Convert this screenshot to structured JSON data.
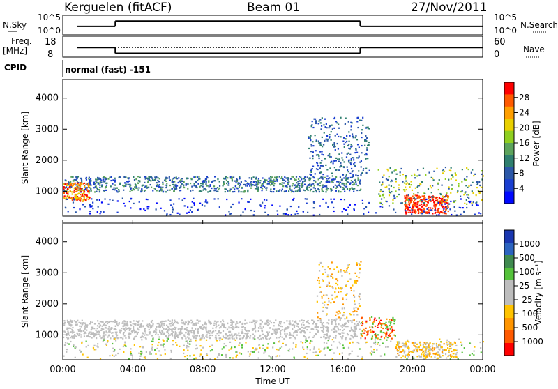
{
  "header": {
    "station": "Kerguelen (fitACF)",
    "beam": "Beam 01",
    "date": "27/Nov/2011"
  },
  "panel_labels": {
    "nsky": "N.Sky",
    "nsearch": "N.Search",
    "freq_line1": "Freq.",
    "freq_line2": "[MHz]",
    "nave": "Nave",
    "cpid": "CPID",
    "cpid_text": "normal (fast) -151"
  },
  "colors": {
    "axis": "#000000",
    "scatter_blue": "#1a3fd0",
    "ground_gray": "#bdbdbd"
  },
  "chart_data": [
    {
      "type": "line",
      "name": "noise",
      "yticks_left": [
        "10^5",
        "10^0"
      ],
      "yticks_right": [
        "10^5",
        "10^0"
      ],
      "segments": [
        {
          "x_start": 0.8,
          "x_end": 3.0,
          "level": 0.55
        },
        {
          "x_start": 3.0,
          "x_end": 17.0,
          "level": 0.9
        },
        {
          "x_start": 17.0,
          "x_end": 24.0,
          "level": 0.55
        }
      ]
    },
    {
      "type": "line",
      "name": "frequency",
      "yticks_left": [
        "18",
        "8"
      ],
      "yticks_right": [
        "60",
        "0"
      ],
      "freq_segments": [
        {
          "x_start": 0.8,
          "x_end": 3.0,
          "value": 12.5
        },
        {
          "x_start": 3.0,
          "x_end": 17.0,
          "value": 9.2
        },
        {
          "x_start": 17.0,
          "x_end": 24.0,
          "value": 12.5
        }
      ],
      "nave_level": 12.5
    },
    {
      "type": "heatmap",
      "name": "power",
      "ylabel": "Slant Range [km]",
      "yticks": [
        1000,
        2000,
        3000,
        4000
      ],
      "ylim": [
        200,
        4600
      ],
      "xlim": [
        0,
        24
      ],
      "colorbar": {
        "label": "Power [dB]",
        "ticks": [
          "28",
          "24",
          "20",
          "16",
          "12",
          "8",
          "4"
        ],
        "colors": [
          "#ff0000",
          "#ff5a00",
          "#ff9f00",
          "#e9d000",
          "#8fcf20",
          "#5ca35c",
          "#2f7f6f",
          "#2c58a8",
          "#1a3fd0",
          "#0008ff"
        ]
      }
    },
    {
      "type": "heatmap",
      "name": "velocity",
      "ylabel": "Slant Range [km]",
      "xlabel": "Time UT",
      "yticks": [
        1000,
        2000,
        3000,
        4000
      ],
      "ylim": [
        200,
        4600
      ],
      "xlim": [
        0,
        24
      ],
      "xticks": [
        "00:00",
        "04:00",
        "08:00",
        "12:00",
        "16:00",
        "20:00",
        "00:00"
      ],
      "colorbar": {
        "label": "Velocity [m s⁻¹]",
        "ticks": [
          "1000",
          "500",
          "100",
          "25",
          "-25",
          "-100",
          "-500",
          "-1000"
        ],
        "colors": [
          "#1a37b0",
          "#2c64c0",
          "#3f8a4f",
          "#55c23b",
          "#bdbdbd",
          "#bdbdbd",
          "#ffc300",
          "#ff9500",
          "#ff5a00",
          "#ff0000"
        ]
      }
    }
  ]
}
